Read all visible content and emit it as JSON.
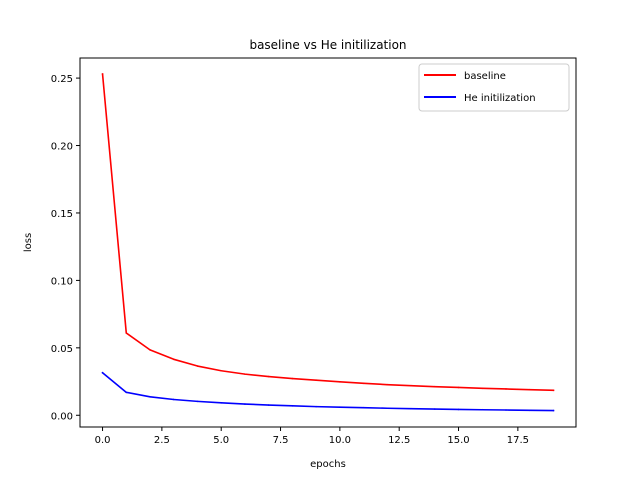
{
  "chart_data": {
    "type": "line",
    "title": "baseline vs He initilization",
    "xlabel": "epochs",
    "ylabel": "loss",
    "xlim": [
      -0.95,
      19.95
    ],
    "ylim": [
      -0.0087,
      0.2649
    ],
    "xticks": [
      0.0,
      2.5,
      5.0,
      7.5,
      10.0,
      12.5,
      15.0,
      17.5
    ],
    "xtick_labels": [
      "0.0",
      "2.5",
      "5.0",
      "7.5",
      "10.0",
      "12.5",
      "15.0",
      "17.5"
    ],
    "yticks": [
      0.0,
      0.05,
      0.1,
      0.15,
      0.2,
      0.25
    ],
    "ytick_labels": [
      "0.00",
      "0.05",
      "0.10",
      "0.15",
      "0.20",
      "0.25"
    ],
    "grid": false,
    "legend_position": "top-right",
    "x": [
      0,
      1,
      2,
      3,
      4,
      5,
      6,
      7,
      8,
      9,
      10,
      11,
      12,
      13,
      14,
      15,
      16,
      17,
      18,
      19
    ],
    "series": [
      {
        "name": "baseline",
        "color": "#ff0000",
        "values": [
          0.253,
          0.061,
          0.0485,
          0.0415,
          0.0365,
          0.033,
          0.0305,
          0.0287,
          0.0272,
          0.026,
          0.0248,
          0.0237,
          0.0227,
          0.0219,
          0.0212,
          0.0206,
          0.02,
          0.0195,
          0.019,
          0.0185
        ]
      },
      {
        "name": "He initilization",
        "color": "#0000ff",
        "values": [
          0.0315,
          0.017,
          0.0137,
          0.0117,
          0.0103,
          0.0092,
          0.0083,
          0.0076,
          0.007,
          0.0064,
          0.006,
          0.0056,
          0.0052,
          0.0049,
          0.0046,
          0.0043,
          0.0041,
          0.0039,
          0.0037,
          0.0035
        ]
      }
    ]
  }
}
